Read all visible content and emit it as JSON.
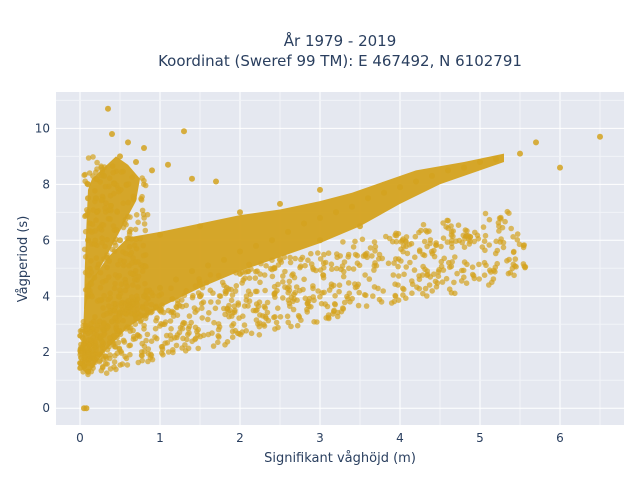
{
  "chart_data": {
    "type": "scatter",
    "title": "År 1979 - 2019",
    "subtitle": "Koordinat (Sweref 99 TM): E 467492, N 6102791",
    "xlabel": "Signifikant våghöjd (m)",
    "ylabel": "Vågperiod (s)",
    "xlim": [
      -0.3,
      6.8
    ],
    "ylim": [
      -0.6,
      11.3
    ],
    "x_ticks": [
      "0",
      "1",
      "2",
      "3",
      "4",
      "5",
      "6"
    ],
    "y_ticks": [
      "0",
      "2",
      "4",
      "6",
      "8",
      "10"
    ],
    "grid": true,
    "marker_color": "#d4a21e",
    "plot_bgcolor": "#e5e8f0",
    "series": [
      {
        "points": [
          [
            0.05,
            0.0
          ],
          [
            0.08,
            0.0
          ],
          [
            0.05,
            1.5
          ],
          [
            0.1,
            1.3
          ],
          [
            0.1,
            2.0
          ],
          [
            0.15,
            1.8
          ],
          [
            0.2,
            2.2
          ],
          [
            0.25,
            2.5
          ],
          [
            0.3,
            2.8
          ],
          [
            0.4,
            3.1
          ],
          [
            0.5,
            3.4
          ],
          [
            0.6,
            3.6
          ],
          [
            0.7,
            3.8
          ],
          [
            0.8,
            4.0
          ],
          [
            1.0,
            4.3
          ],
          [
            1.2,
            4.6
          ],
          [
            1.4,
            4.9
          ],
          [
            1.6,
            5.1
          ],
          [
            1.8,
            5.3
          ],
          [
            2.0,
            5.6
          ],
          [
            2.2,
            5.8
          ],
          [
            2.4,
            6.0
          ],
          [
            2.6,
            6.3
          ],
          [
            2.8,
            6.6
          ],
          [
            3.0,
            6.8
          ],
          [
            3.2,
            7.0
          ],
          [
            3.4,
            7.2
          ],
          [
            3.6,
            7.5
          ],
          [
            3.8,
            7.7
          ],
          [
            4.0,
            7.9
          ],
          [
            4.2,
            8.1
          ],
          [
            4.4,
            8.3
          ],
          [
            4.6,
            8.5
          ],
          [
            4.8,
            8.6
          ],
          [
            5.0,
            8.8
          ],
          [
            5.2,
            8.9
          ],
          [
            5.5,
            9.1
          ],
          [
            5.7,
            9.5
          ],
          [
            6.0,
            8.6
          ],
          [
            6.5,
            9.7
          ],
          [
            0.1,
            4.0
          ],
          [
            0.1,
            6.0
          ],
          [
            0.1,
            7.5
          ],
          [
            0.1,
            8.0
          ],
          [
            0.2,
            7.5
          ],
          [
            0.3,
            8.3
          ],
          [
            0.35,
            10.7
          ],
          [
            0.4,
            9.8
          ],
          [
            0.5,
            9.0
          ],
          [
            0.6,
            9.5
          ],
          [
            0.7,
            8.8
          ],
          [
            0.8,
            9.3
          ],
          [
            0.9,
            8.5
          ],
          [
            1.1,
            8.7
          ],
          [
            1.3,
            9.9
          ],
          [
            1.4,
            8.2
          ],
          [
            1.7,
            8.1
          ],
          [
            0.5,
            6.0
          ],
          [
            1.0,
            6.2
          ],
          [
            1.5,
            6.5
          ],
          [
            2.0,
            7.0
          ],
          [
            2.5,
            7.3
          ],
          [
            3.0,
            7.8
          ],
          [
            1.0,
            3.5
          ],
          [
            1.5,
            4.0
          ],
          [
            2.0,
            4.8
          ],
          [
            2.5,
            5.3
          ],
          [
            3.0,
            6.0
          ],
          [
            3.5,
            6.5
          ]
        ]
      }
    ]
  }
}
